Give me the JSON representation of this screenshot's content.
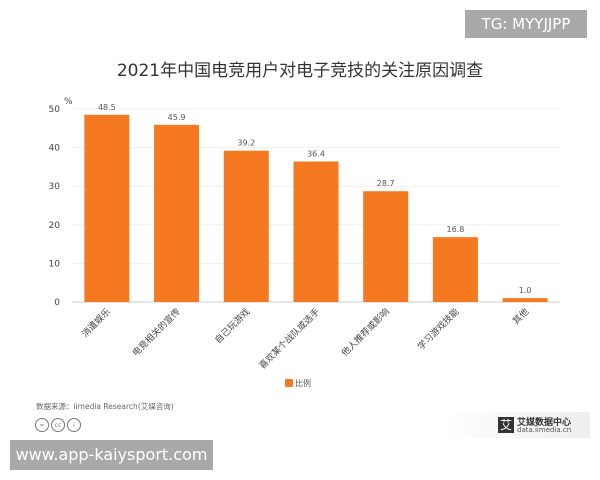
{
  "watermark_top": "TG: MYYJJPP",
  "watermark_bottom": "www.app-kaiysport.com",
  "source": "数据来源：iimedia Research(艾媒咨询)",
  "logo": {
    "mark": "艾",
    "name": "艾媒数据中心",
    "url": "data.iimedia.cn"
  },
  "chart_data": {
    "type": "bar",
    "title": "2021年中国电竞用户对电子竞技的关注原因调查",
    "ylabel": "%",
    "ylim": [
      0,
      50
    ],
    "yticks": [
      "0",
      "10",
      "20",
      "30",
      "40",
      "50"
    ],
    "categories": [
      "消遣娱乐",
      "电竞相关的宣传",
      "自己玩游戏",
      "喜欢某个战队或选手",
      "他人推荐或影响",
      "学习游戏技能",
      "其他"
    ],
    "values": [
      48.5,
      45.9,
      39.2,
      36.4,
      28.7,
      16.8,
      1.0
    ],
    "value_labels": [
      "48.5",
      "45.9",
      "39.2",
      "36.4",
      "28.7",
      "16.8",
      "1.0"
    ],
    "legend": [
      "比例"
    ],
    "legend_placement": "bottom",
    "color": "#F47920"
  }
}
